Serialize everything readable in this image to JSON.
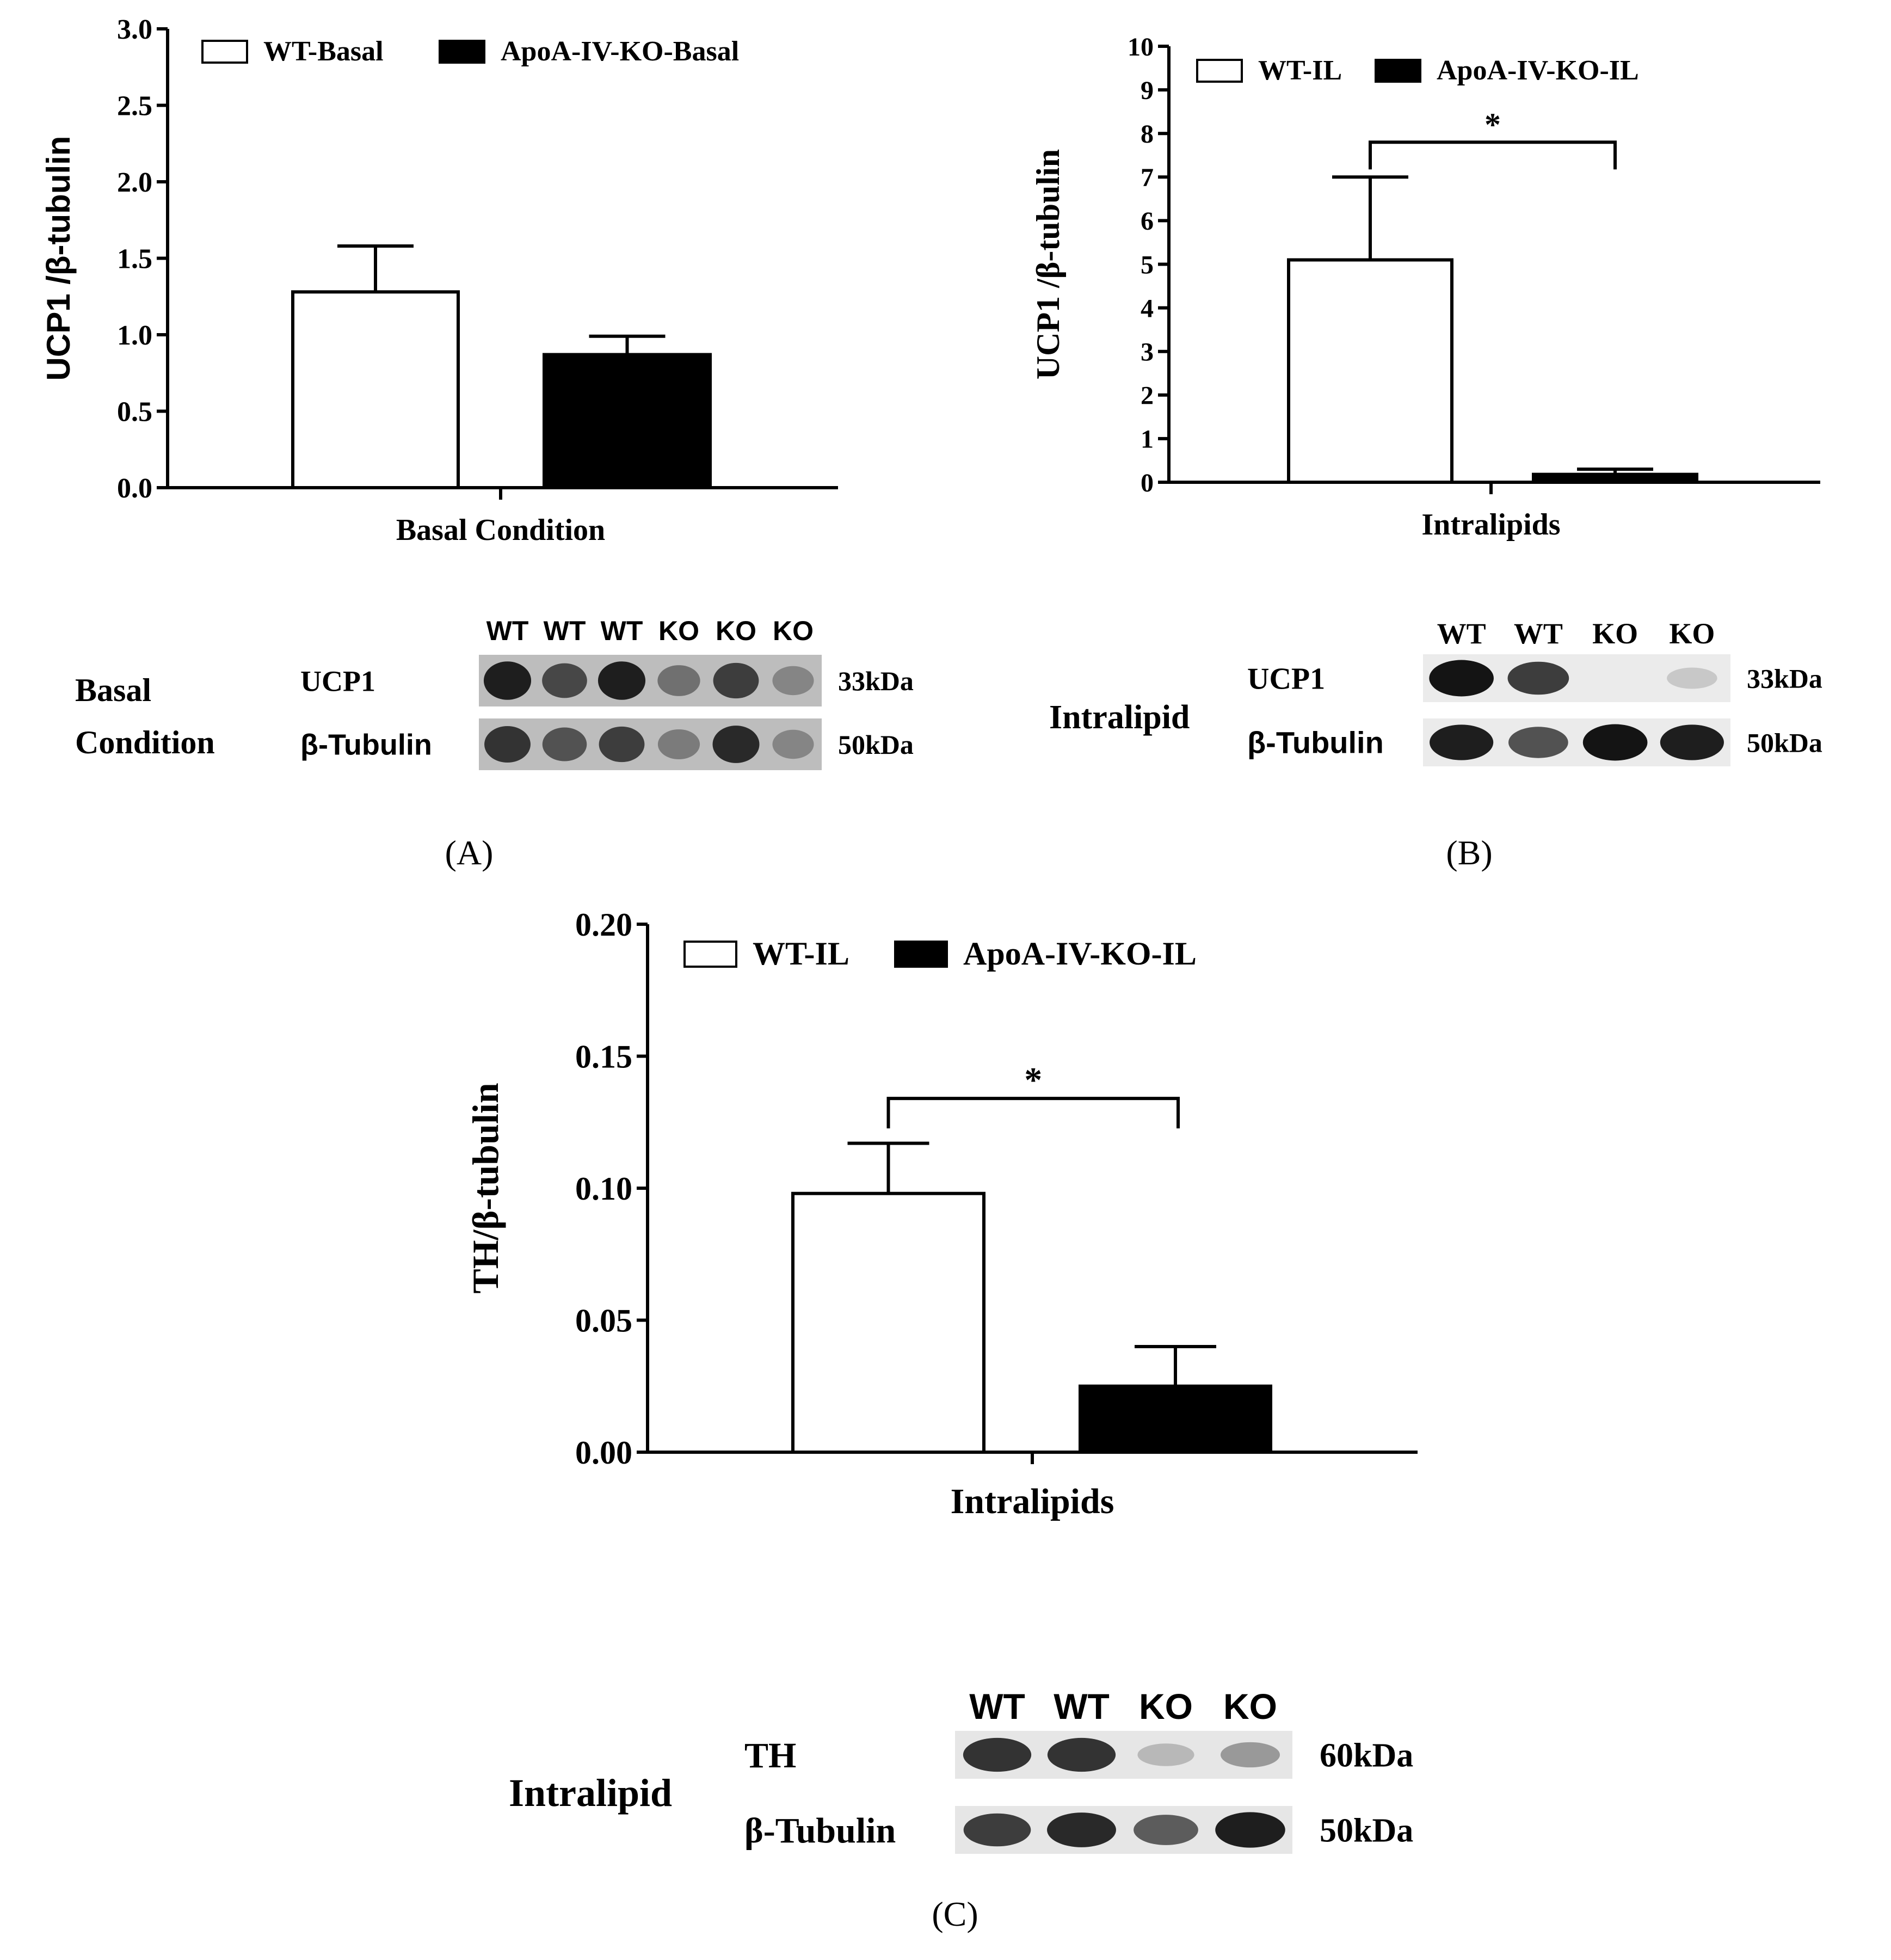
{
  "chart_data": [
    {
      "panel": "(A)",
      "type": "bar",
      "title": "",
      "xlabel": "Basal Condition",
      "ylabel": "UCP1 /β-tubulin",
      "ylim": [
        0,
        3.0
      ],
      "ytick_labels": [
        "0.0",
        "0.5",
        "1.0",
        "1.5",
        "2.0",
        "2.5",
        "3.0"
      ],
      "ytick_values": [
        0,
        0.5,
        1.0,
        1.5,
        2.0,
        2.5,
        3.0
      ],
      "legend_position": "top",
      "series": [
        {
          "name": "WT-Basal",
          "value": 1.28,
          "error": 0.3,
          "color": "#ffffff"
        },
        {
          "name": "ApoA-IV-KO-Basal",
          "value": 0.87,
          "error": 0.12,
          "color": "#000000"
        }
      ],
      "significance": null
    },
    {
      "panel": "(B)",
      "type": "bar",
      "title": "",
      "xlabel": "Intralipids",
      "ylabel": "UCP1 /β-tubulin",
      "ylim": [
        0,
        10
      ],
      "ytick_labels": [
        "0",
        "1",
        "2",
        "3",
        "4",
        "5",
        "6",
        "7",
        "8",
        "9",
        "10"
      ],
      "ytick_values": [
        0,
        1,
        2,
        3,
        4,
        5,
        6,
        7,
        8,
        9,
        10
      ],
      "legend_position": "top",
      "series": [
        {
          "name": "WT-IL",
          "value": 5.1,
          "error": 1.9,
          "color": "#ffffff"
        },
        {
          "name": "ApoA-IV-KO-IL",
          "value": 0.18,
          "error": 0.12,
          "color": "#000000"
        }
      ],
      "significance": {
        "label": "*",
        "bracket_y": 7.8
      }
    },
    {
      "panel": "(C)",
      "type": "bar",
      "title": "",
      "xlabel": "Intralipids",
      "ylabel": "TH/β-tubulin",
      "ylim": [
        0,
        0.2
      ],
      "ytick_labels": [
        "0.00",
        "0.05",
        "0.10",
        "0.15",
        "0.20"
      ],
      "ytick_values": [
        0,
        0.05,
        0.1,
        0.15,
        0.2
      ],
      "legend_position": "top",
      "series": [
        {
          "name": "WT-IL",
          "value": 0.098,
          "error": 0.019,
          "color": "#ffffff"
        },
        {
          "name": "ApoA-IV-KO-IL",
          "value": 0.025,
          "error": 0.015,
          "color": "#000000"
        }
      ],
      "significance": {
        "label": "*",
        "bracket_y": 0.134
      }
    }
  ],
  "blots": {
    "A": {
      "condition_label": [
        "Basal",
        "Condition"
      ],
      "lanes": [
        "WT",
        "WT",
        "WT",
        "KO",
        "KO",
        "KO"
      ],
      "rows": [
        {
          "protein": "UCP1",
          "size": "33kDa",
          "intensities": [
            0.95,
            0.75,
            0.95,
            0.55,
            0.8,
            0.45
          ]
        },
        {
          "protein": "β-Tubulin",
          "size": "50kDa",
          "intensities": [
            0.85,
            0.7,
            0.8,
            0.5,
            0.9,
            0.45
          ]
        }
      ]
    },
    "B": {
      "condition_label": [
        "Intralipid"
      ],
      "lanes": [
        "WT",
        "WT",
        "KO",
        "KO"
      ],
      "rows": [
        {
          "protein": "UCP1",
          "size": "33kDa",
          "intensities": [
            1.0,
            0.8,
            0.0,
            0.12
          ]
        },
        {
          "protein": "β-Tubulin",
          "size": "50kDa",
          "intensities": [
            0.95,
            0.7,
            1.0,
            0.95
          ]
        }
      ]
    },
    "C": {
      "condition_label": [
        "Intralipid"
      ],
      "lanes": [
        "WT",
        "WT",
        "KO",
        "KO"
      ],
      "rows": [
        {
          "protein": "TH",
          "size": "60kDa",
          "intensities": [
            0.85,
            0.85,
            0.2,
            0.35
          ]
        },
        {
          "protein": "β-Tubulin",
          "size": "50kDa",
          "intensities": [
            0.8,
            0.9,
            0.65,
            0.95
          ]
        }
      ]
    }
  }
}
